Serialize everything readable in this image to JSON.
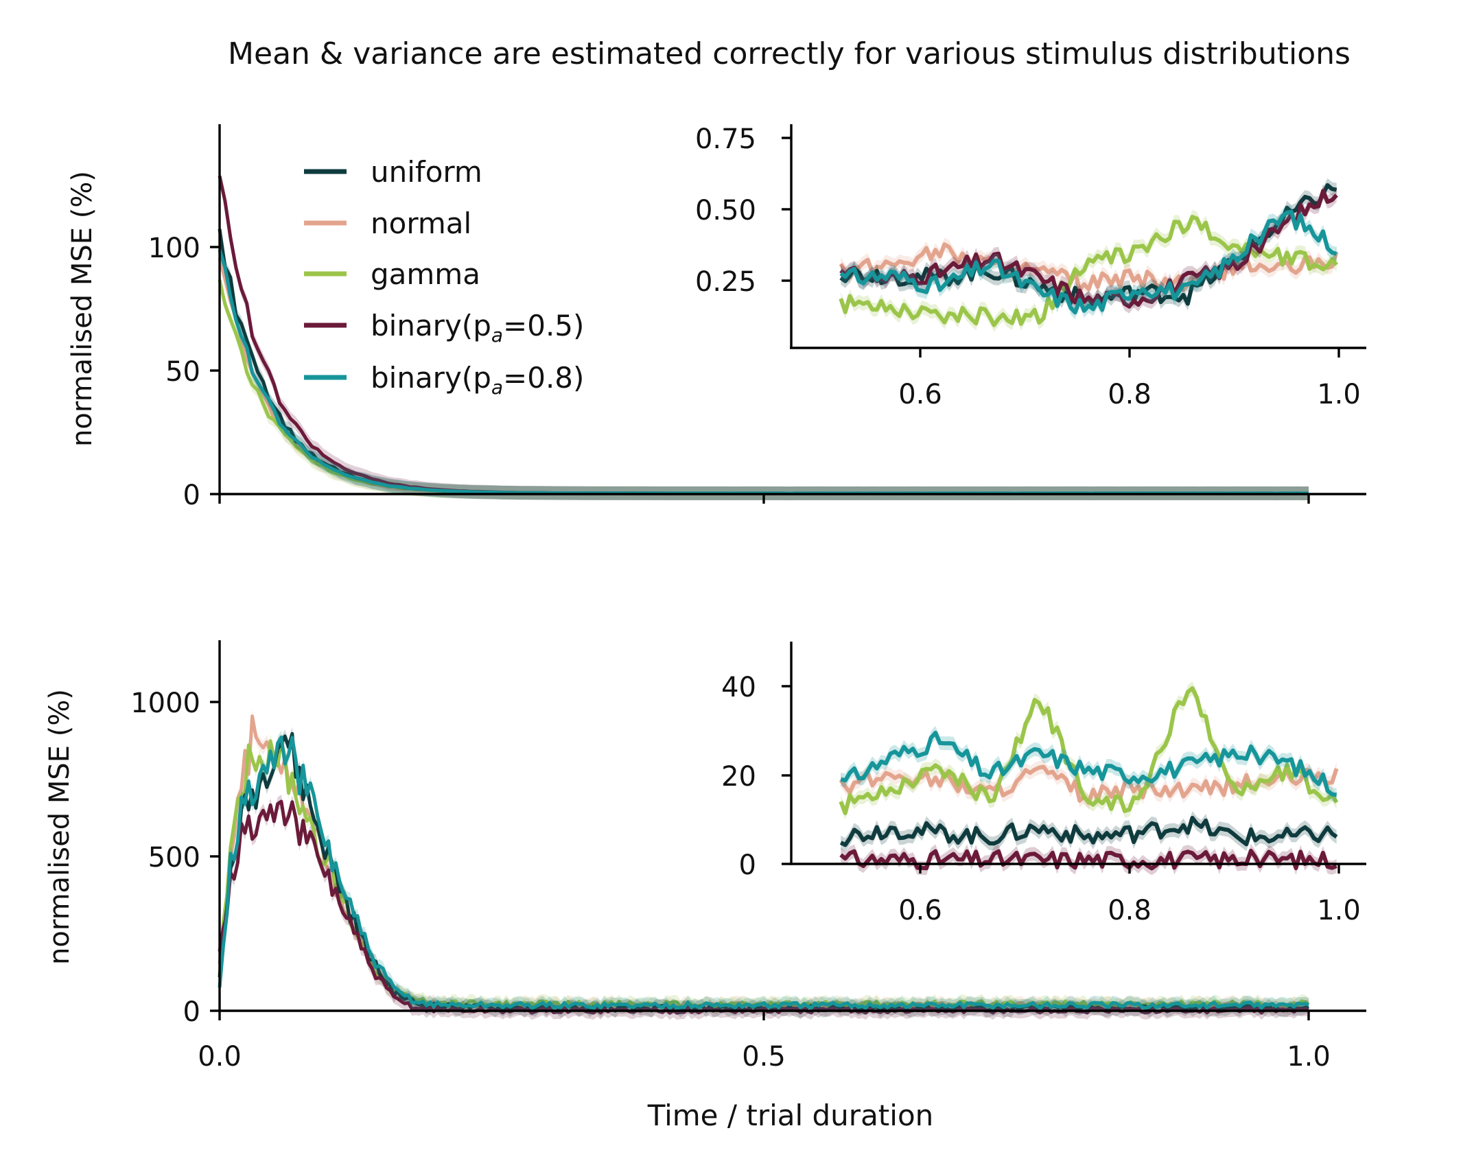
{
  "title": "Mean & variance are estimated correctly for various stimulus distributions",
  "chart_data": [
    {
      "type": "line",
      "panel": "top",
      "ylabel": "normalised MSE (%)",
      "xlabel": "",
      "xlim": [
        0.0,
        1.05
      ],
      "ylim": [
        0,
        150
      ],
      "xticks": [
        0.0,
        0.5,
        1.0
      ],
      "yticks": [
        0,
        50,
        100
      ],
      "ytick_labels": [
        "0",
        "50",
        "100"
      ],
      "legend": {
        "placement": "top-left",
        "entries": [
          "uniform",
          "normal",
          "gamma",
          "binary(p",
          "binary(p"
        ],
        "binary_subscript": "a",
        "binary_values": [
          "=0.5)",
          "=0.8)"
        ]
      },
      "decay": {
        "start_values": [
          105,
          95,
          88,
          130,
          100
        ],
        "tau": 0.045,
        "floor": 0.3
      },
      "inset": {
        "xlim": [
          0.45,
          1.03
        ],
        "ylim": [
          0.0,
          0.8
        ],
        "xticks": [
          0.6,
          0.8,
          1.0
        ],
        "xtick_labels": [
          "0.6",
          "0.8",
          "1.0"
        ],
        "yticks": [
          0.25,
          0.5,
          0.75
        ],
        "ytick_labels": [
          "0.25",
          "0.50",
          "0.75"
        ],
        "x": [
          0.5,
          0.55,
          0.6,
          0.65,
          0.7,
          0.75,
          0.8,
          0.85,
          0.9,
          0.95,
          1.0
        ],
        "series": [
          {
            "name": "uniform",
            "values": [
              0.27,
              0.26,
              0.25,
              0.28,
              0.22,
              0.17,
              0.2,
              0.19,
              0.32,
              0.47,
              0.58
            ]
          },
          {
            "name": "normal",
            "values": [
              0.27,
              0.3,
              0.35,
              0.3,
              0.27,
              0.23,
              0.25,
              0.22,
              0.3,
              0.28,
              0.32
            ]
          },
          {
            "name": "gamma",
            "values": [
              0.16,
              0.15,
              0.12,
              0.11,
              0.12,
              0.3,
              0.35,
              0.45,
              0.36,
              0.32,
              0.3
            ]
          },
          {
            "name": "binary(pa=0.5)",
            "values": [
              0.26,
              0.25,
              0.27,
              0.32,
              0.25,
              0.17,
              0.18,
              0.24,
              0.3,
              0.45,
              0.57
            ]
          },
          {
            "name": "binary(pa=0.8)",
            "values": [
              0.25,
              0.26,
              0.22,
              0.3,
              0.2,
              0.14,
              0.22,
              0.2,
              0.33,
              0.48,
              0.36
            ]
          }
        ]
      }
    },
    {
      "type": "line",
      "panel": "bottom",
      "ylabel": "normalised MSE (%)",
      "xlabel": "Time / trial duration",
      "xlim": [
        0.0,
        1.05
      ],
      "ylim": [
        0,
        1200
      ],
      "xticks": [
        0.0,
        0.5,
        1.0
      ],
      "xtick_labels": [
        "0.0",
        "0.5",
        "1.0"
      ],
      "yticks": [
        0,
        500,
        1000
      ],
      "ytick_labels": [
        "0",
        "500",
        "1000"
      ],
      "x": [
        0.0,
        0.01,
        0.02,
        0.03,
        0.04,
        0.05,
        0.06,
        0.08,
        0.1,
        0.12,
        0.14,
        0.16,
        0.18,
        0.2,
        0.25,
        0.3,
        0.4,
        0.5,
        0.6,
        0.7,
        0.8,
        0.9,
        1.0
      ],
      "series": [
        {
          "name": "uniform",
          "values": [
            100,
            450,
            620,
            700,
            760,
            860,
            900,
            700,
            500,
            320,
            160,
            60,
            25,
            15,
            10,
            8,
            8,
            8,
            8,
            8,
            8,
            8,
            8
          ]
        },
        {
          "name": "normal",
          "values": [
            150,
            500,
            720,
            880,
            870,
            860,
            800,
            650,
            470,
            300,
            150,
            60,
            30,
            20,
            18,
            18,
            18,
            18,
            18,
            18,
            18,
            18,
            18
          ]
        },
        {
          "name": "gamma",
          "values": [
            120,
            550,
            740,
            840,
            830,
            860,
            780,
            640,
            460,
            300,
            150,
            60,
            35,
            25,
            22,
            22,
            20,
            20,
            22,
            22,
            22,
            22,
            22
          ]
        },
        {
          "name": "binary(pa=0.5)",
          "values": [
            200,
            420,
            560,
            600,
            620,
            640,
            650,
            560,
            430,
            280,
            130,
            40,
            10,
            3,
            1,
            1,
            1,
            1,
            1,
            1,
            1,
            1,
            1
          ]
        },
        {
          "name": "binary(pa=0.8)",
          "values": [
            80,
            480,
            640,
            720,
            760,
            820,
            860,
            720,
            520,
            340,
            170,
            70,
            30,
            20,
            18,
            18,
            18,
            18,
            18,
            18,
            18,
            18,
            18
          ]
        }
      ],
      "inset": {
        "xlim": [
          0.45,
          1.03
        ],
        "ylim": [
          0,
          50
        ],
        "xticks": [
          0.6,
          0.8,
          1.0
        ],
        "xtick_labels": [
          "0.6",
          "0.8",
          "1.0"
        ],
        "yticks": [
          0,
          20,
          40
        ],
        "ytick_labels": [
          "0",
          "20",
          "40"
        ],
        "x": [
          0.5,
          0.55,
          0.6,
          0.65,
          0.7,
          0.75,
          0.8,
          0.85,
          0.9,
          0.95,
          1.0
        ],
        "series": [
          {
            "name": "uniform",
            "values": [
              6,
              8,
              7,
              6,
              8,
              6,
              7,
              9,
              6,
              6,
              7
            ]
          },
          {
            "name": "normal",
            "values": [
              17,
              20,
              19,
              16,
              21,
              15,
              17,
              16,
              18,
              19,
              20
            ]
          },
          {
            "name": "gamma",
            "values": [
              13,
              17,
              22,
              14,
              38,
              13,
              14,
              40,
              16,
              21,
              14
            ]
          },
          {
            "name": "binary(pa=0.5)",
            "values": [
              1,
              1,
              1,
              1,
              1,
              1,
              1,
              1,
              1,
              1,
              1
            ]
          },
          {
            "name": "binary(pa=0.8)",
            "values": [
              18,
              24,
              28,
              20,
              25,
              21,
              20,
              22,
              25,
              23,
              17
            ]
          }
        ]
      }
    }
  ],
  "colors": {
    "uniform": "#0f3b3e",
    "normal": "#e3a48e",
    "gamma": "#9bc54a",
    "binary(pa=0.5)": "#6b1a3a",
    "binary(pa=0.8)": "#16959a"
  }
}
